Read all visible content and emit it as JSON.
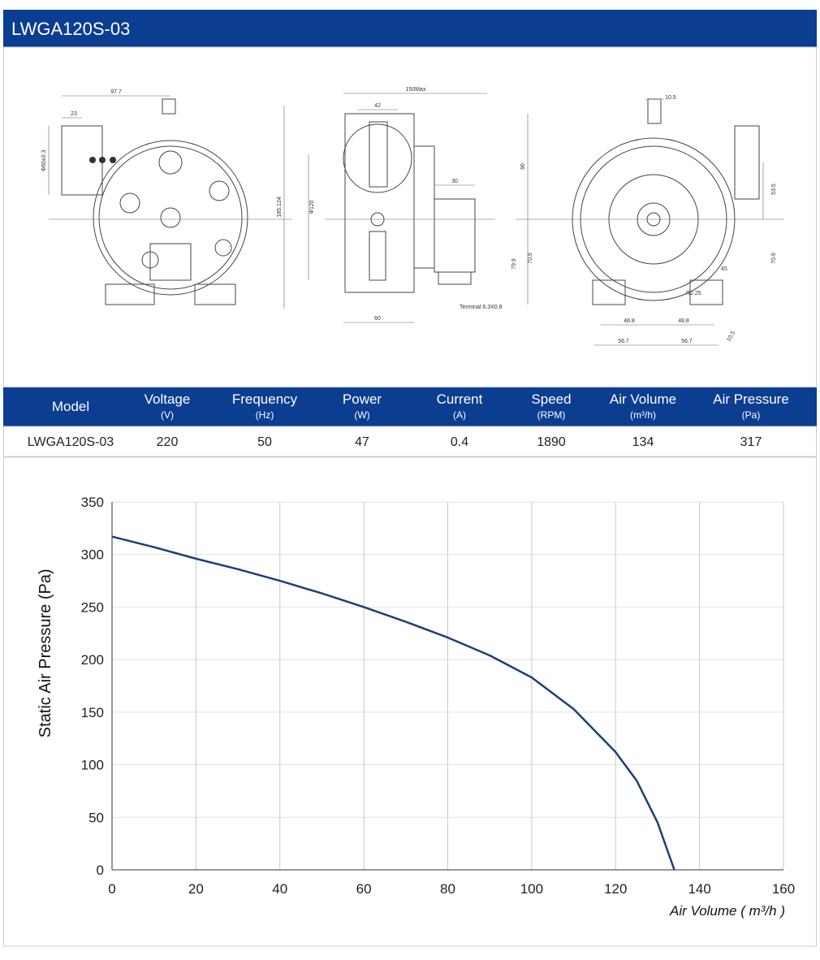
{
  "header": {
    "title": "LWGA120S-03"
  },
  "drawings": {
    "front": [
      "97.7",
      "23",
      "Φ60±0.3",
      "185.124"
    ],
    "side": [
      "150Max",
      "42",
      "Φ120",
      "30",
      "60",
      "Terminal 6.3X0.8"
    ],
    "back": [
      "10.5",
      "96",
      "53.5",
      "79.9",
      "70.9",
      "70.9",
      "45",
      "R2.25",
      "48.8",
      "48.8",
      "56.7",
      "56.7",
      "10.5"
    ]
  },
  "table": {
    "headers": [
      {
        "name": "Model"
      },
      {
        "name": "Voltage",
        "unit": "(V)"
      },
      {
        "name": "Frequency",
        "unit": "(Hz)"
      },
      {
        "name": "Power",
        "unit": "(W)"
      },
      {
        "name": "Current",
        "unit": "(A)"
      },
      {
        "name": "Speed",
        "unit": "(RPM)"
      },
      {
        "name": "Air Volume",
        "unit": "(m³/h)"
      },
      {
        "name": "Air Pressure",
        "unit": "(Pa)"
      }
    ],
    "rows": [
      [
        "LWGA120S-03",
        "220",
        "50",
        "47",
        "0.4",
        "1890",
        "134",
        "317"
      ]
    ]
  },
  "chart_data": {
    "type": "line",
    "y_label": "Static Air Pressure  (Pa)",
    "x_label": "Air Volume ( m³/h )",
    "x": [
      0,
      10,
      20,
      30,
      40,
      50,
      60,
      70,
      80,
      90,
      100,
      110,
      120,
      125,
      130,
      134
    ],
    "values": [
      317,
      307,
      296,
      286,
      275,
      263,
      250,
      236,
      221,
      204,
      183,
      153,
      112,
      85,
      45,
      0
    ],
    "color": "#1d3f78",
    "xlim": [
      0,
      160
    ],
    "ylim": [
      0,
      350
    ],
    "xticks": [
      0,
      20,
      40,
      60,
      80,
      100,
      120,
      140,
      160
    ],
    "yticks": [
      0,
      50,
      100,
      150,
      200,
      250,
      300,
      350
    ],
    "grid": true
  }
}
